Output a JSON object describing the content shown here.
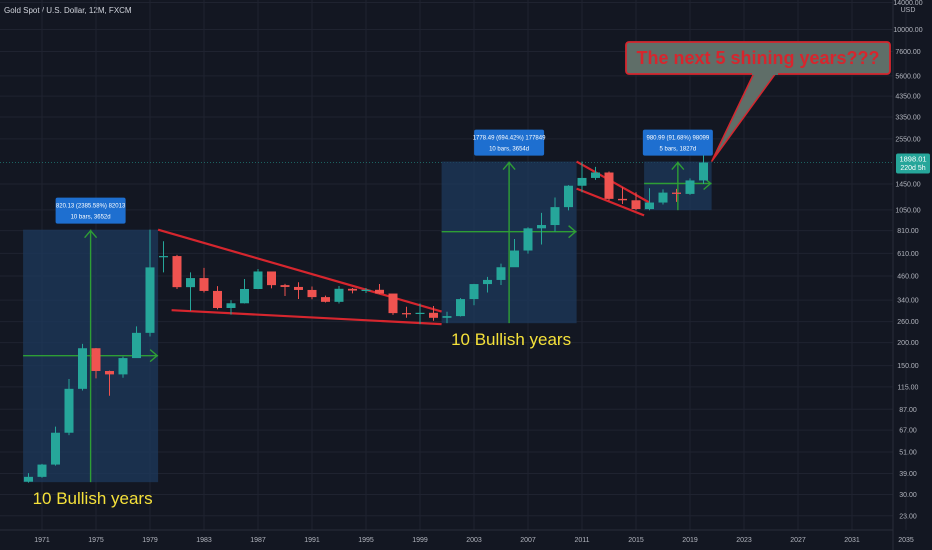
{
  "header": {
    "title": "Gold Spot / U.S. Dollar, 12M, FXCM"
  },
  "axis": {
    "currency": "USD"
  },
  "price_label": {
    "value": "1898.01",
    "countdown": "220d 5h"
  },
  "colors": {
    "background": "#131722",
    "grid": "#1f2330",
    "bull": "#26a69a",
    "bear": "#ef5350",
    "trendline": "#d6262e",
    "measure_fill": "#1d3a5c",
    "measure_arrow": "#2e9e35",
    "measure_label": "#1e6fd0",
    "annotation_text": "#f5e13a",
    "callout_fill": "#5f6e68",
    "callout_border": "#d6262e",
    "callout_text": "#d6262e",
    "price_badge": "#26a69a"
  },
  "chart_data": {
    "type": "candlestick",
    "title": "Gold Spot / U.S. Dollar, 12M, FXCM",
    "yscale": "log",
    "ylim": [
      20,
      14000
    ],
    "xlim": [
      1969.6,
      2036
    ],
    "grid": true,
    "y_ticks": [
      23,
      30,
      39,
      51,
      67,
      87,
      115,
      150,
      200,
      260,
      340,
      460,
      610,
      810,
      1050,
      1450,
      2550,
      3350,
      4350,
      5600,
      7600,
      10000,
      14000
    ],
    "y_tick_labels": [
      "23.00",
      "30.00",
      "39.00",
      "51.00",
      "67.00",
      "87.00",
      "115.00",
      "150.00",
      "200.00",
      "260.00",
      "340.00",
      "460.00",
      "610.00",
      "810.00",
      "1050.00",
      "1450.00",
      "2550.00",
      "3350.00",
      "4350.00",
      "5600.00",
      "7600.00",
      "10000.00",
      "14000.00"
    ],
    "x_ticks": [
      1971,
      1975,
      1979,
      1983,
      1987,
      1991,
      1995,
      1999,
      2003,
      2007,
      2011,
      2015,
      2019,
      2023,
      2027,
      2031,
      2035
    ],
    "candles": [
      {
        "year": 1970,
        "o": 35.2,
        "h": 39.2,
        "l": 34.8,
        "c": 37.4
      },
      {
        "year": 1971,
        "o": 37.4,
        "h": 44.0,
        "l": 37.0,
        "c": 43.6
      },
      {
        "year": 1972,
        "o": 43.6,
        "h": 70.0,
        "l": 43.0,
        "c": 64.9
      },
      {
        "year": 1973,
        "o": 64.9,
        "h": 127.0,
        "l": 63.0,
        "c": 112.3
      },
      {
        "year": 1974,
        "o": 112.3,
        "h": 197.0,
        "l": 110.0,
        "c": 186.5
      },
      {
        "year": 1975,
        "o": 186.5,
        "h": 187.0,
        "l": 128.0,
        "c": 140.3
      },
      {
        "year": 1976,
        "o": 140.3,
        "h": 141.0,
        "l": 103.0,
        "c": 134.5
      },
      {
        "year": 1977,
        "o": 134.5,
        "h": 168.0,
        "l": 129.0,
        "c": 164.9
      },
      {
        "year": 1978,
        "o": 164.9,
        "h": 245.0,
        "l": 165.0,
        "c": 226.0
      },
      {
        "year": 1979,
        "o": 226.0,
        "h": 820.0,
        "l": 216.0,
        "c": 512.0
      },
      {
        "year": 1980,
        "o": 589.8,
        "h": 710.0,
        "l": 481.0,
        "c": 589.8
      },
      {
        "year": 1981,
        "o": 589.8,
        "h": 599.0,
        "l": 391.0,
        "c": 400.0
      },
      {
        "year": 1982,
        "o": 400.0,
        "h": 481.0,
        "l": 297.0,
        "c": 448.0
      },
      {
        "year": 1983,
        "o": 448.0,
        "h": 509.0,
        "l": 374.0,
        "c": 381.5
      },
      {
        "year": 1984,
        "o": 381.5,
        "h": 405.0,
        "l": 303.0,
        "c": 308.3
      },
      {
        "year": 1985,
        "o": 308.3,
        "h": 340.0,
        "l": 284.0,
        "c": 327.0
      },
      {
        "year": 1986,
        "o": 327.0,
        "h": 443.0,
        "l": 326.0,
        "c": 390.9
      },
      {
        "year": 1987,
        "o": 390.9,
        "h": 502.0,
        "l": 390.0,
        "c": 486.5
      },
      {
        "year": 1988,
        "o": 486.5,
        "h": 486.0,
        "l": 394.0,
        "c": 410.2
      },
      {
        "year": 1989,
        "o": 410.2,
        "h": 417.0,
        "l": 358.0,
        "c": 401.0
      },
      {
        "year": 1990,
        "o": 401.0,
        "h": 425.0,
        "l": 345.0,
        "c": 386.2
      },
      {
        "year": 1991,
        "o": 386.2,
        "h": 403.0,
        "l": 344.0,
        "c": 353.2
      },
      {
        "year": 1992,
        "o": 353.2,
        "h": 360.0,
        "l": 330.0,
        "c": 333.0
      },
      {
        "year": 1993,
        "o": 333.0,
        "h": 406.0,
        "l": 326.0,
        "c": 391.8
      },
      {
        "year": 1994,
        "o": 391.8,
        "h": 396.0,
        "l": 370.0,
        "c": 383.3
      },
      {
        "year": 1995,
        "o": 383.3,
        "h": 396.0,
        "l": 372.0,
        "c": 387.0
      },
      {
        "year": 1996,
        "o": 387.0,
        "h": 416.0,
        "l": 367.0,
        "c": 369.3
      },
      {
        "year": 1997,
        "o": 369.3,
        "h": 367.0,
        "l": 283.0,
        "c": 289.2
      },
      {
        "year": 1998,
        "o": 289.2,
        "h": 313.0,
        "l": 273.0,
        "c": 287.8
      },
      {
        "year": 1999,
        "o": 287.8,
        "h": 326.0,
        "l": 252.0,
        "c": 290.3
      },
      {
        "year": 2000,
        "o": 290.3,
        "h": 316.0,
        "l": 263.0,
        "c": 272.7
      },
      {
        "year": 2001,
        "o": 272.7,
        "h": 294.0,
        "l": 255.0,
        "c": 278.6
      },
      {
        "year": 2002,
        "o": 278.6,
        "h": 349.0,
        "l": 277.0,
        "c": 344.6
      },
      {
        "year": 2003,
        "o": 344.6,
        "h": 417.0,
        "l": 319.0,
        "c": 415.7
      },
      {
        "year": 2004,
        "o": 415.7,
        "h": 455.0,
        "l": 374.0,
        "c": 437.7
      },
      {
        "year": 2005,
        "o": 437.7,
        "h": 537.0,
        "l": 411.0,
        "c": 513.0
      },
      {
        "year": 2006,
        "o": 513.0,
        "h": 730.0,
        "l": 520.0,
        "c": 632.0
      },
      {
        "year": 2007,
        "o": 632.0,
        "h": 845.0,
        "l": 608.0,
        "c": 834.0
      },
      {
        "year": 2008,
        "o": 834.0,
        "h": 1011.0,
        "l": 681.0,
        "c": 869.0
      },
      {
        "year": 2009,
        "o": 869.0,
        "h": 1226.0,
        "l": 802.0,
        "c": 1087.0
      },
      {
        "year": 2010,
        "o": 1087.0,
        "h": 1430.0,
        "l": 1044.0,
        "c": 1420.0
      },
      {
        "year": 2011,
        "o": 1420.0,
        "h": 1921.0,
        "l": 1308.0,
        "c": 1565.0
      },
      {
        "year": 2012,
        "o": 1565.0,
        "h": 1796.0,
        "l": 1527.0,
        "c": 1675.0
      },
      {
        "year": 2013,
        "o": 1675.0,
        "h": 1697.0,
        "l": 1180.0,
        "c": 1205.0
      },
      {
        "year": 2014,
        "o": 1205.0,
        "h": 1392.0,
        "l": 1131.0,
        "c": 1184.0
      },
      {
        "year": 2015,
        "o": 1184.0,
        "h": 1308.0,
        "l": 1046.0,
        "c": 1061.0
      },
      {
        "year": 2016,
        "o": 1061.0,
        "h": 1375.0,
        "l": 1046.0,
        "c": 1151.0
      },
      {
        "year": 2017,
        "o": 1151.0,
        "h": 1357.0,
        "l": 1124.0,
        "c": 1303.0
      },
      {
        "year": 2018,
        "o": 1303.0,
        "h": 1366.0,
        "l": 1160.0,
        "c": 1282.0
      },
      {
        "year": 2019,
        "o": 1282.0,
        "h": 1557.0,
        "l": 1266.0,
        "c": 1517.0
      },
      {
        "year": 2020,
        "o": 1517.0,
        "h": 2075.0,
        "l": 1451.0,
        "c": 1898.0
      }
    ],
    "measures": [
      {
        "x0": 1969.6,
        "x1": 1979.6,
        "y0": 35.0,
        "y1": 820.0,
        "label1": "820.13 (2385.58%) 82013",
        "label2": "10 bars, 3652d",
        "annotation": "10 Bullish years",
        "mid_y": 170.0
      },
      {
        "x0": 2000.6,
        "x1": 2010.6,
        "y0": 255.0,
        "y1": 1920.0,
        "label1": "1778.49 (694.42%) 177849",
        "label2": "10 bars, 3654d",
        "annotation": "10 Bullish years",
        "mid_y": 800.0
      },
      {
        "x0": 2015.6,
        "x1": 2020.6,
        "y0": 1046.0,
        "y1": 1920.0,
        "label1": "980.99 (91.68%) 98099",
        "label2": "5 bars, 1827d",
        "annotation": "",
        "mid_y": 1460.0
      }
    ],
    "trendlines": [
      {
        "x0": 1979.6,
        "y0": 820.0,
        "x1": 2000.6,
        "y1": 295.0
      },
      {
        "x0": 1980.6,
        "y0": 300.0,
        "x1": 2000.6,
        "y1": 252.0
      },
      {
        "x0": 2010.6,
        "y0": 1920.0,
        "x1": 2016.0,
        "y1": 1150.0
      },
      {
        "x0": 2010.6,
        "y0": 1370.0,
        "x1": 2015.6,
        "y1": 980.0
      }
    ],
    "callout": {
      "text": "The next 5 shining years???",
      "anchor_x": 2020.6,
      "anchor_y": 1920.0
    }
  }
}
